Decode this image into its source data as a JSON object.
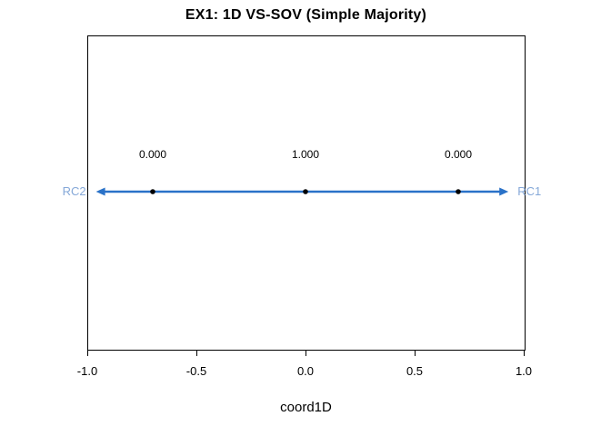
{
  "chart_data": {
    "type": "scatter",
    "title": "EX1: 1D VS-SOV (Simple Majority)",
    "xlabel": "coord1D",
    "xlim": [
      -1.0,
      1.0
    ],
    "grid": false,
    "legend": false,
    "x_ticks": [
      {
        "value": -1.0,
        "label": "-1.0"
      },
      {
        "value": -0.5,
        "label": "-0.5"
      },
      {
        "value": 0.0,
        "label": "0.0"
      },
      {
        "value": 0.5,
        "label": "0.5"
      },
      {
        "value": 1.0,
        "label": "1.0"
      }
    ],
    "points": [
      {
        "x": -0.7,
        "y": 0,
        "label": "0.000"
      },
      {
        "x": 0.0,
        "y": 0,
        "label": "1.000"
      },
      {
        "x": 0.7,
        "y": 0,
        "label": "0.000"
      }
    ],
    "arrow": {
      "x_start": -0.96,
      "x_end": 0.93,
      "left_label": "RC2",
      "right_label": "RC1"
    }
  },
  "colors": {
    "arrow_line": "#2a72c8",
    "arrow_label": "#85a8d8",
    "point": "#000000",
    "text": "#000000",
    "box_border": "#000000",
    "background": "#ffffff"
  }
}
